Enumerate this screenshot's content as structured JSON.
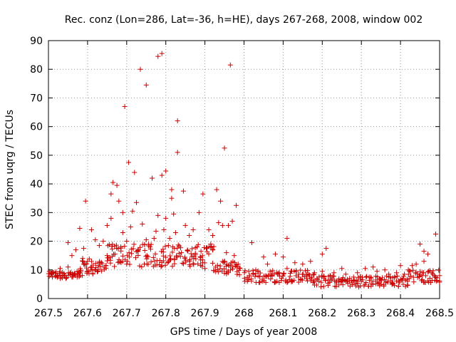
{
  "chart_data": {
    "type": "scatter",
    "title": "Rec. conz (Lon=286, Lat=-36, h=HE), days 267-268, 2008, window 002",
    "xlabel": "GPS time / Days of year 2008",
    "ylabel": "STEC from uqrg / TECUs",
    "xlim": [
      267.5,
      268.5
    ],
    "ylim": [
      0,
      90
    ],
    "x_ticks": [
      267.5,
      267.6,
      267.7,
      267.8,
      267.9,
      268.0,
      268.1,
      268.2,
      268.3,
      268.4,
      268.5
    ],
    "x_tick_labels": [
      "267.5",
      "267.6",
      "267.7",
      "267.8",
      "267.9",
      "268",
      "268.1",
      "268.2",
      "268.3",
      "268.4",
      "268.5"
    ],
    "y_ticks": [
      0,
      10,
      20,
      30,
      40,
      50,
      60,
      70,
      80,
      90
    ],
    "y_tick_labels": [
      "0",
      "10",
      "20",
      "30",
      "40",
      "50",
      "60",
      "70",
      "80",
      "90"
    ],
    "marker": "+",
    "color": "#cc0000",
    "series": [
      {
        "name": "STEC",
        "points": [
          [
            267.51,
            7.5
          ],
          [
            267.51,
            9.0
          ],
          [
            267.52,
            8.0
          ],
          [
            267.53,
            7.0
          ],
          [
            267.53,
            10.5
          ],
          [
            267.54,
            8.5
          ],
          [
            267.55,
            19.5
          ],
          [
            267.55,
            11.0
          ],
          [
            267.56,
            7.5
          ],
          [
            267.56,
            15.0
          ],
          [
            267.57,
            17.0
          ],
          [
            267.58,
            24.5
          ],
          [
            267.58,
            9.0
          ],
          [
            267.59,
            17.5
          ],
          [
            267.59,
            12.0
          ],
          [
            267.595,
            34.0
          ],
          [
            267.6,
            13.0
          ],
          [
            267.6,
            9.5
          ],
          [
            267.61,
            24.0
          ],
          [
            267.61,
            11.0
          ],
          [
            267.62,
            20.5
          ],
          [
            267.63,
            12.5
          ],
          [
            267.63,
            18.5
          ],
          [
            267.64,
            20.0
          ],
          [
            267.65,
            25.5
          ],
          [
            267.65,
            15.0
          ],
          [
            267.66,
            28.0
          ],
          [
            267.66,
            36.5
          ],
          [
            267.665,
            40.5
          ],
          [
            267.67,
            15.5
          ],
          [
            267.675,
            39.5
          ],
          [
            267.68,
            34.0
          ],
          [
            267.685,
            18.0
          ],
          [
            267.69,
            23.0
          ],
          [
            267.69,
            30.0
          ],
          [
            267.695,
            67.0
          ],
          [
            267.7,
            20.0
          ],
          [
            267.7,
            12.0
          ],
          [
            267.705,
            47.5
          ],
          [
            267.71,
            25.0
          ],
          [
            267.715,
            30.5
          ],
          [
            267.72,
            44.0
          ],
          [
            267.725,
            33.5
          ],
          [
            267.73,
            17.0
          ],
          [
            267.735,
            80.0
          ],
          [
            267.74,
            26.0
          ],
          [
            267.745,
            12.0
          ],
          [
            267.75,
            74.5
          ],
          [
            267.75,
            20.5
          ],
          [
            267.76,
            18.0
          ],
          [
            267.765,
            42.0
          ],
          [
            267.77,
            21.0
          ],
          [
            267.775,
            23.5
          ],
          [
            267.78,
            84.5
          ],
          [
            267.78,
            29.0
          ],
          [
            267.79,
            85.5
          ],
          [
            267.79,
            43.0
          ],
          [
            267.795,
            24.0
          ],
          [
            267.8,
            44.5
          ],
          [
            267.8,
            28.0
          ],
          [
            267.81,
            21.0
          ],
          [
            267.815,
            38.0
          ],
          [
            267.815,
            35.0
          ],
          [
            267.82,
            29.5
          ],
          [
            267.825,
            23.0
          ],
          [
            267.83,
            62.0
          ],
          [
            267.83,
            51.0
          ],
          [
            267.84,
            16.0
          ],
          [
            267.845,
            37.5
          ],
          [
            267.85,
            25.5
          ],
          [
            267.86,
            22.0
          ],
          [
            267.87,
            24.0
          ],
          [
            267.88,
            18.0
          ],
          [
            267.885,
            30.0
          ],
          [
            267.89,
            16.5
          ],
          [
            267.895,
            36.5
          ],
          [
            267.9,
            10.5
          ],
          [
            267.91,
            24.0
          ],
          [
            267.915,
            19.0
          ],
          [
            267.92,
            22.0
          ],
          [
            267.93,
            38.0
          ],
          [
            267.935,
            26.5
          ],
          [
            267.94,
            34.0
          ],
          [
            267.945,
            25.5
          ],
          [
            267.95,
            52.5
          ],
          [
            267.955,
            16.0
          ],
          [
            267.96,
            25.5
          ],
          [
            267.965,
            81.5
          ],
          [
            267.97,
            27.0
          ],
          [
            267.975,
            15.0
          ],
          [
            267.98,
            32.5
          ],
          [
            267.985,
            12.0
          ],
          [
            267.99,
            10.5
          ],
          [
            267.95,
            13.0
          ],
          [
            267.96,
            9.5
          ],
          [
            267.97,
            11.0
          ],
          [
            268.02,
            19.5
          ],
          [
            268.03,
            10.0
          ],
          [
            268.05,
            14.5
          ],
          [
            268.06,
            12.0
          ],
          [
            268.07,
            8.5
          ],
          [
            268.08,
            15.5
          ],
          [
            268.09,
            9.0
          ],
          [
            268.1,
            14.5
          ],
          [
            268.11,
            21.0
          ],
          [
            268.11,
            10.5
          ],
          [
            268.12,
            9.5
          ],
          [
            268.13,
            12.5
          ],
          [
            268.14,
            8.5
          ],
          [
            268.15,
            12.0
          ],
          [
            268.16,
            8.0
          ],
          [
            268.17,
            13.0
          ],
          [
            268.18,
            9.0
          ],
          [
            268.2,
            15.5
          ],
          [
            268.2,
            9.5
          ],
          [
            268.21,
            17.5
          ],
          [
            268.22,
            8.0
          ],
          [
            268.23,
            9.0
          ],
          [
            268.25,
            10.5
          ],
          [
            268.26,
            8.5
          ],
          [
            268.28,
            7.5
          ],
          [
            268.29,
            9.0
          ],
          [
            268.31,
            10.5
          ],
          [
            268.32,
            7.5
          ],
          [
            268.33,
            11.0
          ],
          [
            268.34,
            9.5
          ],
          [
            268.35,
            6.5
          ],
          [
            268.36,
            10.0
          ],
          [
            268.37,
            8.5
          ],
          [
            268.38,
            5.5
          ],
          [
            268.39,
            9.0
          ],
          [
            268.4,
            11.5
          ],
          [
            268.41,
            8.5
          ],
          [
            268.42,
            10.0
          ],
          [
            268.43,
            11.5
          ],
          [
            268.44,
            12.0
          ],
          [
            268.45,
            19.0
          ],
          [
            268.46,
            16.5
          ],
          [
            268.46,
            13.0
          ],
          [
            268.47,
            15.5
          ],
          [
            268.48,
            9.0
          ],
          [
            268.49,
            22.5
          ],
          [
            268.49,
            7.5
          ],
          [
            268.5,
            8.0
          ],
          [
            268.3,
            6.0
          ],
          [
            268.35,
            5.0
          ],
          [
            268.25,
            6.0
          ]
        ]
      }
    ],
    "bands": [
      {
        "x_start": 267.5,
        "x_end": 267.58,
        "y_low": 7.0,
        "y_high": 9.5
      },
      {
        "x_start": 267.58,
        "x_end": 267.65,
        "y_low": 8.0,
        "y_high": 14.0
      },
      {
        "x_start": 267.65,
        "x_end": 267.92,
        "y_low": 11.0,
        "y_high": 19.0
      },
      {
        "x_start": 267.92,
        "x_end": 267.99,
        "y_low": 8.0,
        "y_high": 13.0
      },
      {
        "x_start": 268.0,
        "x_end": 268.18,
        "y_low": 5.5,
        "y_high": 10.0
      },
      {
        "x_start": 268.18,
        "x_end": 268.42,
        "y_low": 4.0,
        "y_high": 8.0
      },
      {
        "x_start": 268.42,
        "x_end": 268.5,
        "y_low": 5.5,
        "y_high": 10.0
      }
    ]
  }
}
